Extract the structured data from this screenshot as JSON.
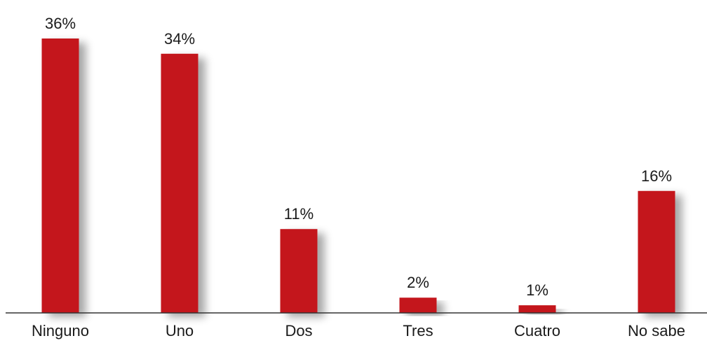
{
  "chart_data": {
    "type": "bar",
    "categories": [
      "Ninguno",
      "Uno",
      "Dos",
      "Tres",
      "Cuatro",
      "No sabe"
    ],
    "values": [
      36,
      34,
      11,
      2,
      1,
      16
    ],
    "data_labels": [
      "36%",
      "34%",
      "11%",
      "2%",
      "1%",
      "16%"
    ],
    "title": "",
    "xlabel": "",
    "ylabel": "",
    "ylim": [
      0,
      40
    ],
    "grid": false,
    "legend": "none",
    "colors": {
      "bar": "#c4161c",
      "axis": "#333333",
      "text": "#1a1a1a"
    }
  }
}
